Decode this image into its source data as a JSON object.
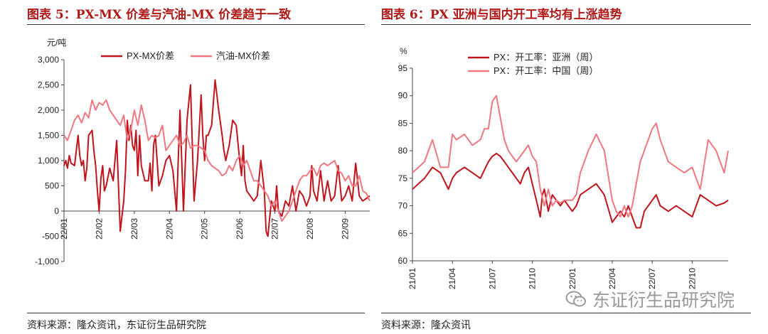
{
  "panels": {
    "left": {
      "title": "图表 5：PX-MX 价差与汽油-MX 价差趋于一致",
      "source": "资料来源：隆众资讯，东证衍生品研究院"
    },
    "right": {
      "title": "图表 6：PX 亚洲与国内开工率均有上涨趋势",
      "source": "资料来源：隆众资讯"
    }
  },
  "watermark": {
    "text": "东证衍生品研究院",
    "icon": "wechat-icon"
  },
  "colors": {
    "dark_series": "#c0141c",
    "light_series": "#f07880",
    "axis": "#444444",
    "title": "#b01818"
  },
  "chart_data": [
    {
      "type": "line",
      "ylabel": "元/吨",
      "ylim": [
        -1000,
        3000
      ],
      "yticks": [
        -1000,
        -500,
        0,
        500,
        1000,
        1500,
        2000,
        2500,
        3000
      ],
      "ytick_labels": [
        "-1,000",
        "-500",
        "0",
        "500",
        "1,000",
        "1,500",
        "2,000",
        "2,500",
        "3,000"
      ],
      "xlim": [
        0,
        8.7
      ],
      "xticks": [
        0,
        1,
        2,
        3,
        4,
        5,
        6,
        7,
        8
      ],
      "xtick_labels": [
        "22/01",
        "22/02",
        "22/03",
        "22/04",
        "22/05",
        "22/06",
        "22/07",
        "22/08",
        "22/09"
      ],
      "legend_position": "top-left",
      "series": [
        {
          "name": "PX-MX价差",
          "style": "dark",
          "x": [
            0,
            0.05,
            0.1,
            0.15,
            0.2,
            0.3,
            0.4,
            0.45,
            0.5,
            0.55,
            0.6,
            0.65,
            0.7,
            0.8,
            0.85,
            0.9,
            0.95,
            1.0,
            1.05,
            1.1,
            1.15,
            1.2,
            1.3,
            1.4,
            1.5,
            1.6,
            1.7,
            1.75,
            1.8,
            1.85,
            1.9,
            1.95,
            2.0,
            2.05,
            2.1,
            2.15,
            2.2,
            2.3,
            2.4,
            2.45,
            2.5,
            2.55,
            2.6,
            2.7,
            2.8,
            2.9,
            3.0,
            3.1,
            3.2,
            3.3,
            3.4,
            3.5,
            3.6,
            3.7,
            3.8,
            3.9,
            3.95,
            4.0,
            4.05,
            4.1,
            4.2,
            4.3,
            4.4,
            4.5,
            4.55,
            4.6,
            4.7,
            4.8,
            4.9,
            5.0,
            5.05,
            5.1,
            5.15,
            5.2,
            5.3,
            5.4,
            5.5,
            5.6,
            5.7,
            5.75,
            5.8,
            5.9,
            6.0,
            6.05,
            6.1,
            6.2,
            6.3,
            6.4,
            6.5,
            6.6,
            6.7,
            6.8,
            6.9,
            7.0,
            7.05,
            7.1,
            7.2,
            7.3,
            7.4,
            7.5,
            7.6,
            7.7,
            7.8,
            7.9,
            8.0,
            8.1,
            8.2,
            8.3,
            8.4,
            8.5,
            8.6,
            8.7
          ],
          "y": [
            900,
            1000,
            850,
            1100,
            950,
            900,
            1500,
            1100,
            900,
            1000,
            600,
            850,
            1500,
            1600,
            1200,
            900,
            400,
            0,
            650,
            900,
            400,
            500,
            850,
            600,
            1400,
            -400,
            200,
            800,
            1800,
            1400,
            1700,
            1300,
            1200,
            1600,
            700,
            1500,
            900,
            600,
            600,
            950,
            400,
            1300,
            1500,
            500,
            700,
            1000,
            1100,
            800,
            0,
            2000,
            0,
            1800,
            2500,
            200,
            1000,
            2300,
            1500,
            1000,
            1500,
            1500,
            1700,
            2600,
            2000,
            1500,
            1200,
            1000,
            1300,
            1800,
            1700,
            1000,
            700,
            1300,
            600,
            400,
            300,
            200,
            300,
            1000,
            400,
            -400,
            -500,
            200,
            0,
            500,
            0,
            -100,
            200,
            100,
            500,
            0,
            400,
            300,
            100,
            300,
            900,
            400,
            200,
            800,
            200,
            600,
            200,
            300,
            900,
            200,
            300,
            500,
            200,
            950,
            300,
            200,
            250,
            300
          ],
          "mark_y_offset_note": "values in 元/吨"
        },
        {
          "name": "汽油-MX价差",
          "style": "light",
          "x": [
            0,
            0.1,
            0.2,
            0.3,
            0.4,
            0.5,
            0.6,
            0.7,
            0.8,
            0.9,
            1.0,
            1.1,
            1.2,
            1.3,
            1.4,
            1.5,
            1.6,
            1.7,
            1.8,
            1.9,
            2.0,
            2.1,
            2.2,
            2.3,
            2.4,
            2.5,
            2.6,
            2.7,
            2.8,
            2.9,
            3.0,
            3.1,
            3.2,
            3.3,
            3.4,
            3.5,
            3.6,
            3.7,
            3.8,
            3.9,
            4.0,
            4.1,
            4.2,
            4.3,
            4.4,
            4.5,
            4.6,
            4.7,
            4.8,
            4.9,
            5.0,
            5.1,
            5.2,
            5.3,
            5.4,
            5.5,
            5.6,
            5.7,
            5.8,
            5.9,
            6.0,
            6.1,
            6.2,
            6.3,
            6.4,
            6.5,
            6.6,
            6.7,
            6.8,
            6.9,
            7.0,
            7.1,
            7.2,
            7.3,
            7.4,
            7.5,
            7.6,
            7.7,
            7.8,
            7.9,
            8.0,
            8.1,
            8.2,
            8.3,
            8.4,
            8.5,
            8.6,
            8.7
          ],
          "y": [
            1500,
            1400,
            1600,
            1800,
            1900,
            1750,
            1950,
            1850,
            2200,
            2000,
            2150,
            2100,
            2200,
            2000,
            1900,
            1800,
            1700,
            1900,
            1400,
            1600,
            2000,
            1700,
            2100,
            1800,
            1400,
            1500,
            1450,
            1500,
            1700,
            1200,
            1300,
            1400,
            1500,
            1300,
            1350,
            1500,
            1250,
            1300,
            1300,
            1250,
            1200,
            1000,
            900,
            850,
            800,
            700,
            750,
            900,
            800,
            1000,
            1100,
            900,
            1000,
            800,
            600,
            600,
            500,
            400,
            300,
            100,
            200,
            0,
            -200,
            -100,
            0,
            200,
            400,
            600,
            700,
            700,
            800,
            850,
            700,
            900,
            950,
            900,
            950,
            1000,
            800,
            750,
            600,
            700,
            500,
            500,
            700,
            400,
            350,
            200
          ]
        }
      ]
    },
    {
      "type": "line",
      "ylabel": "%",
      "ylim": [
        60,
        95
      ],
      "yticks": [
        60,
        65,
        70,
        75,
        80,
        85,
        90,
        95
      ],
      "ytick_labels": [
        "60",
        "65",
        "70",
        "75",
        "80",
        "85",
        "90",
        "95"
      ],
      "xlim": [
        0,
        7.9
      ],
      "xticks": [
        0,
        1,
        2,
        3,
        4,
        5,
        6,
        7
      ],
      "xtick_labels": [
        "21/01",
        "21/04",
        "21/07",
        "21/10",
        "22/01",
        "22/04",
        "22/07",
        "22/10"
      ],
      "legend_position": "top-left",
      "series": [
        {
          "name": "PX：开工率：亚洲（周）",
          "style": "dark",
          "x": [
            0,
            0.15,
            0.3,
            0.5,
            0.7,
            0.9,
            1.0,
            1.1,
            1.3,
            1.5,
            1.7,
            1.9,
            2.0,
            2.1,
            2.2,
            2.3,
            2.4,
            2.5,
            2.6,
            2.7,
            2.8,
            2.9,
            3.0,
            3.1,
            3.2,
            3.25,
            3.3,
            3.4,
            3.5,
            3.6,
            3.7,
            3.8,
            3.9,
            4.0,
            4.1,
            4.2,
            4.4,
            4.6,
            4.8,
            5.0,
            5.1,
            5.2,
            5.3,
            5.4,
            5.5,
            5.6,
            5.7,
            5.8,
            5.9,
            6.0,
            6.1,
            6.2,
            6.4,
            6.6,
            6.8,
            7.0,
            7.2,
            7.4,
            7.6,
            7.8,
            7.9
          ],
          "y": [
            73,
            74,
            75,
            77,
            76,
            73,
            75,
            76,
            77,
            76,
            75,
            78,
            79,
            79.5,
            79,
            78,
            77,
            76,
            75,
            74,
            76,
            77,
            74,
            71,
            68,
            72,
            73,
            69,
            72,
            71,
            70,
            71,
            70,
            69,
            70,
            72,
            73,
            74,
            72,
            67,
            68,
            69,
            68,
            70,
            68,
            66,
            66,
            69,
            70,
            71,
            72,
            70,
            69,
            70,
            69,
            68,
            72,
            71,
            70,
            70.5,
            71
          ]
        },
        {
          "name": "PX：开工率：中国（周）",
          "style": "light",
          "x": [
            0,
            0.15,
            0.3,
            0.5,
            0.7,
            0.9,
            1.0,
            1.1,
            1.3,
            1.5,
            1.7,
            1.8,
            1.9,
            2.0,
            2.1,
            2.2,
            2.3,
            2.4,
            2.5,
            2.6,
            2.7,
            2.8,
            2.9,
            3.0,
            3.1,
            3.2,
            3.3,
            3.4,
            3.5,
            3.6,
            3.7,
            3.8,
            3.9,
            4.0,
            4.1,
            4.2,
            4.4,
            4.6,
            4.8,
            5.0,
            5.1,
            5.2,
            5.3,
            5.4,
            5.5,
            5.6,
            5.7,
            5.8,
            5.9,
            6.0,
            6.1,
            6.2,
            6.4,
            6.6,
            6.8,
            7.0,
            7.2,
            7.4,
            7.6,
            7.8,
            7.9
          ],
          "y": [
            76,
            77,
            78,
            82,
            77,
            77,
            83,
            82,
            83,
            81,
            82,
            84,
            84,
            89,
            90,
            86,
            82,
            80,
            79,
            78,
            79,
            80,
            81,
            79,
            78,
            73,
            70,
            73,
            70,
            71,
            70.5,
            71,
            71,
            71,
            72,
            76,
            80,
            83,
            80,
            71,
            69,
            68,
            70,
            68,
            70,
            74,
            78,
            80,
            82,
            84,
            85,
            82,
            78,
            77,
            76,
            77,
            73,
            82,
            80,
            76,
            80
          ]
        }
      ]
    }
  ]
}
